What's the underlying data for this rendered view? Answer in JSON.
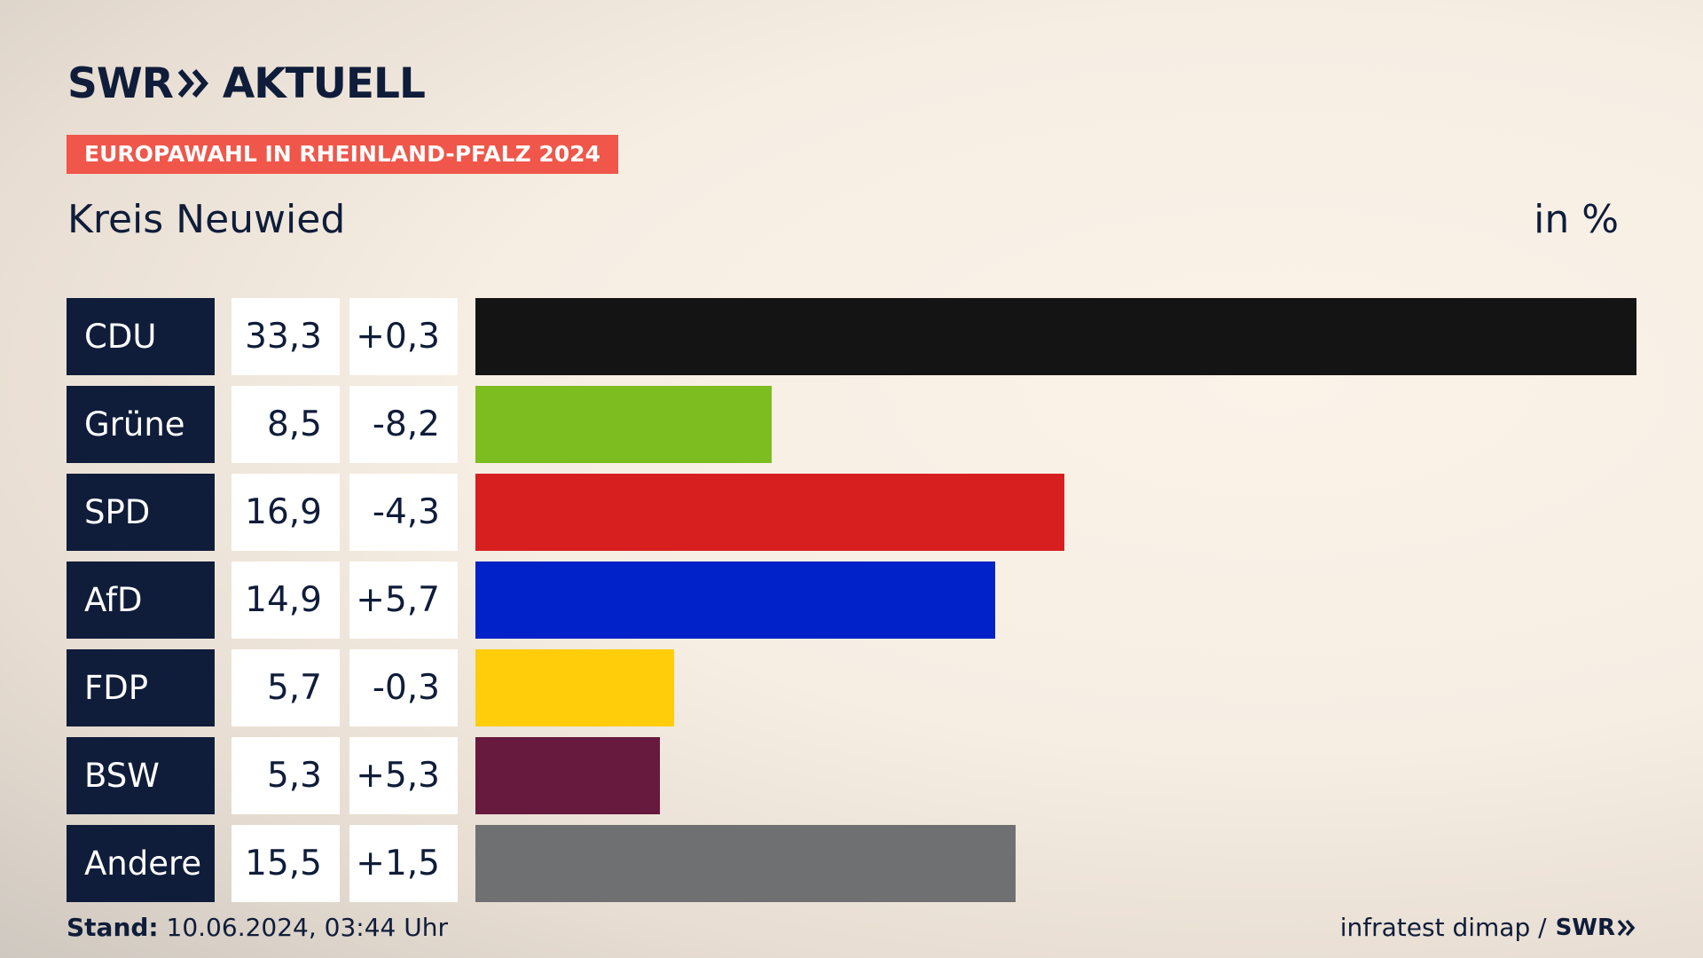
{
  "logo": {
    "text_left": "SWR",
    "text_right": "AKTUELL"
  },
  "tag": "EUROPAWAHL IN RHEINLAND-PFALZ 2024",
  "subtitle": "Kreis Neuwied",
  "unit": "in %",
  "colors": {
    "navy": "#0f1d3a",
    "tag": "#f0564a"
  },
  "chart_data": {
    "type": "bar",
    "orientation": "horizontal",
    "title": "Kreis Neuwied",
    "unit": "in %",
    "categories": [
      "CDU",
      "Grüne",
      "SPD",
      "AfD",
      "FDP",
      "BSW",
      "Andere"
    ],
    "values": [
      33.3,
      8.5,
      16.9,
      14.9,
      5.7,
      5.3,
      15.5
    ],
    "value_labels": [
      "33,3",
      "8,5",
      "16,9",
      "14,9",
      "5,7",
      "5,3",
      "15,5"
    ],
    "changes": [
      0.3,
      -8.2,
      -4.3,
      5.7,
      -0.3,
      5.3,
      1.5
    ],
    "change_labels": [
      "+0,3",
      "-8,2",
      "-4,3",
      "+5,7",
      "-0,3",
      "+5,3",
      "+1,5"
    ],
    "colors": [
      "#141414",
      "#7dbd1f",
      "#d81f20",
      "#0022c8",
      "#ffcd0a",
      "#67193e",
      "#6f7071"
    ],
    "xlim": [
      0,
      33.3
    ]
  },
  "footer": {
    "stand_label": "Stand:",
    "stand_value": "10.06.2024, 03:44 Uhr",
    "source": "infratest dimap /",
    "brand": "SWR"
  }
}
